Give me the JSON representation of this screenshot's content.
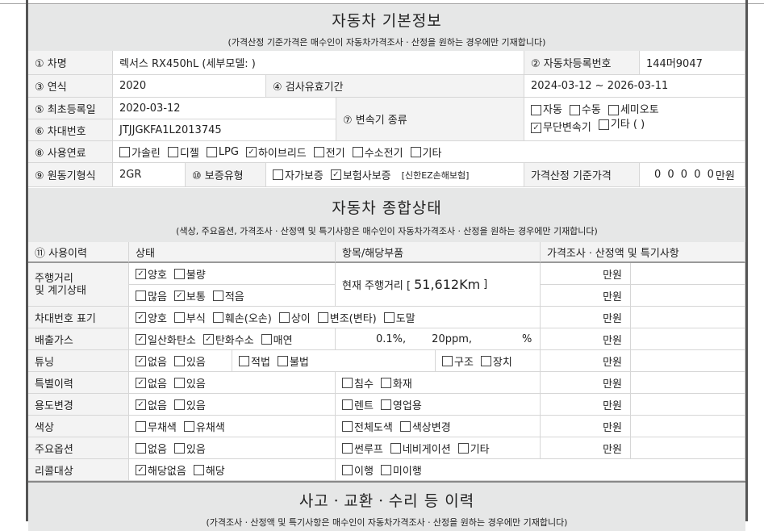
{
  "basic": {
    "title": "자동차 기본정보",
    "subtitle": "(가격산정 기준가격은 매수인이 자동차가격조사ㆍ산정을 원하는 경우에만 기재합니다)",
    "name_label": "① 차명",
    "name_value": "렉서스 RX450hL (세부모델: )",
    "reg_label": "② 자동차등록번호",
    "reg_value": "144머9047",
    "year_label": "③ 연식",
    "year_value": "2020",
    "insp_label": "④ 검사유효기간",
    "insp_value": "2024-03-12 ~ 2026-03-11",
    "first_label": "⑤ 최초등록일",
    "first_value": "2020-03-12",
    "vin_label": "⑥ 차대번호",
    "vin_value": "JTJJGKFA1L2013745",
    "trans_label": "⑦ 변속기 종류",
    "trans": [
      {
        "label": "자동",
        "checked": false
      },
      {
        "label": "수동",
        "checked": false
      },
      {
        "label": "세미오토",
        "checked": false
      },
      {
        "label": "무단변속기",
        "checked": true
      },
      {
        "label": "기타 (       )",
        "checked": false
      }
    ],
    "fuel_label": "⑧ 사용연료",
    "fuel": [
      {
        "label": "가솔린",
        "checked": false
      },
      {
        "label": "디젤",
        "checked": false
      },
      {
        "label": "LPG",
        "checked": false
      },
      {
        "label": "하이브리드",
        "checked": true
      },
      {
        "label": "전기",
        "checked": false
      },
      {
        "label": "수소전기",
        "checked": false
      },
      {
        "label": "기타",
        "checked": false
      }
    ],
    "engine_label": "⑨ 원동기형식",
    "engine_value": "2GR",
    "warranty_label": "⑩ 보증유형",
    "warranty": [
      {
        "label": "자가보증",
        "checked": false
      },
      {
        "label": "보험사보증",
        "checked": true
      }
    ],
    "insurer": "[신한EZ손해보험]",
    "price_label": "가격산정 기준가격",
    "price_value": "0 0 0 0 0",
    "price_unit": "만원"
  },
  "status": {
    "title": "자동차 종합상태",
    "subtitle": "(색상, 주요옵션, 가격조사ㆍ산정액 및 특기사항은 매수인이 자동차가격조사ㆍ산정을 원하는 경우에만 기재합니다)",
    "headers": [
      "⑪ 사용이력",
      "상태",
      "항목/해당부품",
      "가격조사ㆍ산정액 및 특기사항"
    ],
    "unit": "만원",
    "rows": {
      "mileage": {
        "label": "주행거리\n및 계기상태",
        "a": [
          {
            "label": "양호",
            "checked": true
          },
          {
            "label": "불량",
            "checked": false
          }
        ],
        "b": [
          {
            "label": "많음",
            "checked": false
          },
          {
            "label": "보통",
            "checked": true
          },
          {
            "label": "적음",
            "checked": false
          }
        ],
        "item_prefix": "현재 주행거리 [",
        "item_value": "51,612Km",
        "item_suffix": "]"
      },
      "vin": {
        "label": "차대번호 표기",
        "opts": [
          {
            "label": "양호",
            "checked": true
          },
          {
            "label": "부식",
            "checked": false
          },
          {
            "label": "훼손(오손)",
            "checked": false
          },
          {
            "label": "상이",
            "checked": false
          },
          {
            "label": "변조(변타)",
            "checked": false
          },
          {
            "label": "도말",
            "checked": false
          }
        ]
      },
      "emission": {
        "label": "배출가스",
        "opts": [
          {
            "label": "일산화탄소",
            "checked": true
          },
          {
            "label": "탄화수소",
            "checked": true
          },
          {
            "label": "매연",
            "checked": false
          }
        ],
        "v1": "0.1%,",
        "v2": "20ppm,",
        "v3": "%"
      },
      "tuning": {
        "label": "튜닝",
        "opts": [
          {
            "label": "없음",
            "checked": true
          },
          {
            "label": "있음",
            "checked": false
          }
        ],
        "legal": [
          {
            "label": "적법",
            "checked": false
          },
          {
            "label": "불법",
            "checked": false
          }
        ],
        "parts": [
          {
            "label": "구조",
            "checked": false
          },
          {
            "label": "장치",
            "checked": false
          }
        ]
      },
      "special": {
        "label": "특별이력",
        "opts": [
          {
            "label": "없음",
            "checked": true
          },
          {
            "label": "있음",
            "checked": false
          }
        ],
        "items": [
          {
            "label": "침수",
            "checked": false
          },
          {
            "label": "화재",
            "checked": false
          }
        ]
      },
      "usage": {
        "label": "용도변경",
        "opts": [
          {
            "label": "없음",
            "checked": true
          },
          {
            "label": "있음",
            "checked": false
          }
        ],
        "items": [
          {
            "label": "렌트",
            "checked": false
          },
          {
            "label": "영업용",
            "checked": false
          }
        ]
      },
      "color": {
        "label": "색상",
        "opts": [
          {
            "label": "무채색",
            "checked": false
          },
          {
            "label": "유채색",
            "checked": false
          }
        ],
        "items": [
          {
            "label": "전체도색",
            "checked": false
          },
          {
            "label": "색상변경",
            "checked": false
          }
        ]
      },
      "options": {
        "label": "주요옵션",
        "opts": [
          {
            "label": "없음",
            "checked": false
          },
          {
            "label": "있음",
            "checked": false
          }
        ],
        "items": [
          {
            "label": "썬루프",
            "checked": false
          },
          {
            "label": "네비게이션",
            "checked": false
          },
          {
            "label": "기타",
            "checked": false
          }
        ]
      },
      "recall": {
        "label": "리콜대상",
        "opts": [
          {
            "label": "해당없음",
            "checked": true
          },
          {
            "label": "해당",
            "checked": false
          }
        ],
        "items": [
          {
            "label": "이행",
            "checked": false
          },
          {
            "label": "미이행",
            "checked": false
          }
        ]
      }
    }
  },
  "history": {
    "title": "사고ㆍ교환ㆍ수리 등 이력",
    "subtitle": "(가격조사ㆍ산정액 및 특기사항은 매수인이 자동차가격조사ㆍ산정을 원하는 경우에만 기재합니다)"
  }
}
